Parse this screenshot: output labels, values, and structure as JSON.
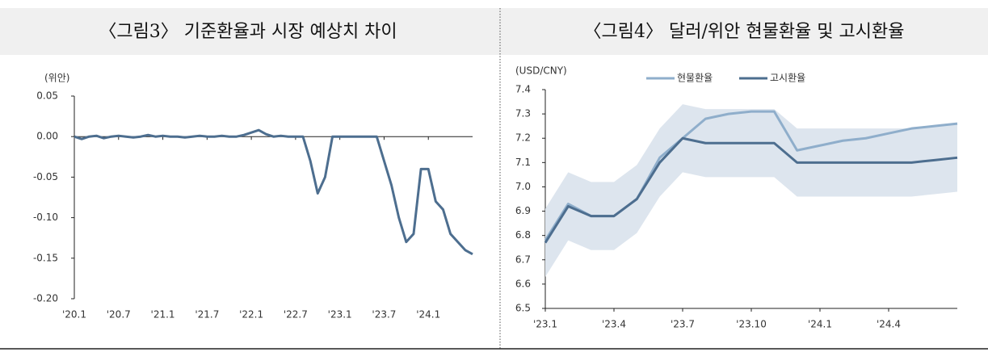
{
  "chart_data": [
    {
      "type": "line",
      "title": "〈그림3〉 기준환율과 시장 예상치 차이",
      "y_label": "(위안)",
      "categories": [
        "'20.1",
        null,
        null,
        null,
        null,
        null,
        "'20.7",
        null,
        null,
        null,
        null,
        null,
        "'21.1",
        null,
        null,
        null,
        null,
        null,
        "'21.7",
        null,
        null,
        null,
        null,
        null,
        "'22.1",
        null,
        null,
        null,
        null,
        null,
        "'22.7",
        null,
        null,
        null,
        null,
        null,
        "'23.1",
        null,
        null,
        null,
        null,
        null,
        "'23.7",
        null,
        null,
        null,
        null,
        null,
        "'24.1",
        null,
        null,
        null,
        null,
        null,
        null
      ],
      "values": [
        0,
        -0.003,
        0,
        0.001,
        -0.002,
        0,
        0.001,
        0,
        -0.001,
        0,
        0.002,
        0,
        0.001,
        0,
        0,
        -0.001,
        0,
        0.001,
        0,
        0,
        0.001,
        0,
        0,
        0.002,
        0.005,
        0.008,
        0.003,
        0,
        0.001,
        0,
        0,
        0,
        -0.03,
        -0.07,
        -0.05,
        0,
        0,
        0,
        0,
        0,
        0,
        0,
        -0.03,
        -0.06,
        -0.1,
        -0.13,
        -0.12,
        -0.04,
        -0.04,
        -0.08,
        -0.09,
        -0.12,
        -0.13,
        -0.14,
        -0.145
      ],
      "color": "#4d6e8f",
      "grid": false,
      "ylim": [
        -0.2,
        0.05
      ],
      "yticks": [
        {
          "value": 0.05,
          "label": "0.05"
        },
        {
          "value": 0,
          "label": "0.00"
        },
        {
          "value": -0.05,
          "label": "-0.05"
        },
        {
          "value": -0.1,
          "label": "-0.10"
        },
        {
          "value": -0.15,
          "label": "-0.15"
        },
        {
          "value": -0.2,
          "label": "-0.20"
        }
      ]
    },
    {
      "type": "line",
      "title": "〈그림4〉 달러/위안 현물환율 및 고시환율",
      "y_label": "(USD/CNY)",
      "categories": [
        "'23.1",
        null,
        null,
        "'23.4",
        null,
        null,
        "'23.7",
        null,
        null,
        "'23.10",
        null,
        null,
        "'24.1",
        null,
        null,
        "'24.4",
        null,
        null,
        null
      ],
      "series": [
        {
          "name": "현물환율",
          "color": "#8faecb",
          "values": [
            6.78,
            6.93,
            6.88,
            6.88,
            6.95,
            7.12,
            7.2,
            7.28,
            7.3,
            7.31,
            7.31,
            7.15,
            7.17,
            7.19,
            7.2,
            7.22,
            7.24,
            7.25,
            7.26
          ]
        },
        {
          "name": "고시환율",
          "color": "#4d6e8f",
          "values": [
            6.77,
            6.92,
            6.88,
            6.88,
            6.95,
            7.1,
            7.2,
            7.18,
            7.18,
            7.18,
            7.18,
            7.1,
            7.1,
            7.1,
            7.1,
            7.1,
            7.1,
            7.11,
            7.12
          ]
        }
      ],
      "band": {
        "color": "#dde5ee",
        "upper": [
          6.91,
          7.06,
          7.02,
          7.02,
          7.09,
          7.24,
          7.34,
          7.32,
          7.32,
          7.32,
          7.32,
          7.24,
          7.24,
          7.24,
          7.24,
          7.24,
          7.24,
          7.25,
          7.26
        ],
        "lower": [
          6.63,
          6.78,
          6.74,
          6.74,
          6.81,
          6.96,
          7.06,
          7.04,
          7.04,
          7.04,
          7.04,
          6.96,
          6.96,
          6.96,
          6.96,
          6.96,
          6.96,
          6.97,
          6.98
        ]
      },
      "grid": false,
      "legend": "top",
      "ylim": [
        6.5,
        7.4
      ],
      "yticks": [
        6.5,
        6.6,
        6.7,
        6.8,
        6.9,
        {
          "value": 7,
          "label": "7.0"
        },
        7.1,
        7.2,
        7.3,
        7.4
      ]
    }
  ]
}
